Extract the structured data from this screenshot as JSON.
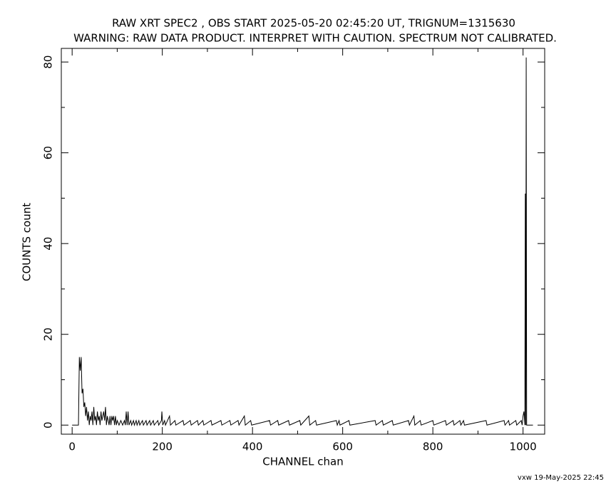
{
  "chart_data": {
    "type": "line",
    "title": "RAW XRT SPEC2 , OBS START 2025-05-20 02:45:20 UT, TRIGNUM=1315630",
    "subtitle": "WARNING: RAW DATA PRODUCT. INTERPRET WITH CAUTION. SPECTRUM NOT CALIBRATED.",
    "xlabel": "CHANNEL  chan",
    "ylabel": "COUNTS  count",
    "footer": "vxw 19-May-2025 22:45",
    "color": "#000000",
    "xlim": [
      -24,
      1048
    ],
    "ylim": [
      -2,
      83
    ],
    "xticks": [
      0,
      200,
      400,
      600,
      800,
      1000
    ],
    "yticks": [
      0,
      20,
      40,
      60,
      80
    ],
    "minor_ticks": true,
    "x": [
      0,
      14,
      16,
      18,
      20,
      22,
      24,
      26,
      28,
      30,
      32,
      34,
      36,
      38,
      40,
      42,
      44,
      46,
      48,
      50,
      52,
      54,
      56,
      58,
      60,
      62,
      64,
      66,
      68,
      70,
      72,
      74,
      76,
      78,
      80,
      82,
      84,
      86,
      88,
      90,
      92,
      94,
      96,
      98,
      100,
      104,
      108,
      112,
      116,
      118,
      120,
      122,
      124,
      126,
      130,
      132,
      136,
      138,
      142,
      144,
      148,
      150,
      156,
      158,
      164,
      166,
      172,
      174,
      180,
      182,
      190,
      192,
      198,
      199,
      201,
      205,
      207,
      216,
      218,
      228,
      230,
      246,
      248,
      262,
      264,
      278,
      280,
      290,
      292,
      308,
      310,
      330,
      332,
      350,
      352,
      368,
      370,
      382,
      384,
      396,
      398,
      438,
      440,
      456,
      458,
      480,
      482,
      505,
      507,
      525,
      527,
      540,
      542,
      586,
      588,
      592,
      594,
      614,
      616,
      672,
      674,
      688,
      690,
      710,
      712,
      746,
      748,
      758,
      760,
      772,
      774,
      800,
      802,
      828,
      830,
      845,
      847,
      860,
      862,
      868,
      870,
      918,
      920,
      958,
      960,
      968,
      970,
      984,
      986,
      996,
      998,
      1000,
      1002,
      1004,
      1005,
      1006,
      1007,
      1008,
      1022
    ],
    "values": [
      0,
      0,
      15,
      12,
      15,
      7,
      8,
      4,
      5,
      2,
      4,
      1,
      3,
      0,
      2,
      1,
      3,
      0,
      4,
      1,
      2,
      0,
      3,
      1,
      2,
      0,
      3,
      1,
      2,
      3,
      1,
      4,
      0,
      2,
      1,
      0,
      2,
      0,
      2,
      1,
      2,
      0,
      2,
      0,
      1,
      0,
      1,
      0,
      1,
      0,
      3,
      0,
      3,
      0,
      1,
      0,
      1,
      0,
      1,
      0,
      1,
      0,
      1,
      0,
      1,
      0,
      1,
      0,
      1,
      0,
      1,
      0,
      1,
      3,
      0,
      1,
      0,
      2,
      0,
      1,
      0,
      1,
      0,
      1,
      0,
      1,
      0,
      1,
      0,
      1,
      0,
      1,
      0,
      1,
      0,
      1,
      0,
      2,
      0,
      1,
      0,
      1,
      0,
      1,
      0,
      1,
      0,
      1,
      0,
      2,
      0,
      1,
      0,
      1,
      0,
      1,
      0,
      1,
      0,
      1,
      0,
      1,
      0,
      1,
      0,
      1,
      0,
      2,
      0,
      1,
      0,
      1,
      0,
      1,
      0,
      1,
      0,
      1,
      0,
      1,
      0,
      1,
      0,
      1,
      0,
      1,
      0,
      1,
      0,
      1,
      0,
      2,
      3,
      0,
      51,
      0,
      81,
      0,
      0
    ]
  }
}
